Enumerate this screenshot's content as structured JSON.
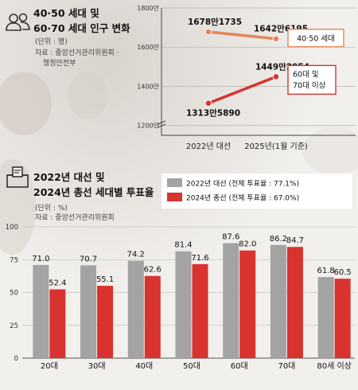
{
  "top": {
    "icon": "people-icon",
    "title_line1": "40·50 세대 및",
    "title_line2": "60·70 세대 인구 변화",
    "unit": "(단위 : 명)",
    "source_line1": "자료 : 중앙선거관리위원회 ·",
    "source_line2": "행정안전부"
  },
  "bottom": {
    "icon": "ballot-box-icon",
    "title_line1": "2022년 대선 및",
    "title_line2": "2024년 총선 세대별 투표율",
    "unit": "(단위 : %)",
    "source": "자료 : 중앙선거관리위원회"
  },
  "chart_data": [
    {
      "type": "line",
      "x": [
        "2022년 대선",
        "2025년(1월 기준)"
      ],
      "y_ticks": [
        "1200만",
        "1400만",
        "1600만",
        "1800만"
      ],
      "ylim": [
        11500000,
        18000000
      ],
      "series": [
        {
          "name": "40·50 세대",
          "values": [
            16781735,
            16426195
          ],
          "labels": [
            "1678만1735",
            "1642만6195"
          ],
          "color": "#e0875a"
        },
        {
          "name": "60대 및 70대 이상",
          "name_line1": "60대 및",
          "name_line2": "70대 이상",
          "values": [
            13135890,
            14492954
          ],
          "labels": [
            "1313만5890",
            "1449만2954"
          ],
          "color": "#d8332e"
        }
      ]
    },
    {
      "type": "bar",
      "categories": [
        "20대",
        "30대",
        "40대",
        "50대",
        "60대",
        "70대",
        "80세 이상"
      ],
      "ylim": [
        0,
        100
      ],
      "y_ticks": [
        "0",
        "25",
        "50",
        "75",
        "100"
      ],
      "legend_position": "top-right",
      "series": [
        {
          "name": "2022년 대선 (전체 투표율 : 77.1%)",
          "values": [
            71.0,
            70.7,
            74.2,
            81.4,
            87.6,
            86.2,
            61.8
          ],
          "labels": [
            "71.0",
            "70.7",
            "74.2",
            "81.4",
            "87.6",
            "86.2",
            "61.8"
          ],
          "color": "#a3a3a3"
        },
        {
          "name": "2024년 총선 (전체 투표율 : 67.0%)",
          "values": [
            52.4,
            55.1,
            62.6,
            71.6,
            82.0,
            84.7,
            60.5
          ],
          "labels": [
            "52.4",
            "55.1",
            "62.6",
            "71.6",
            "82.0",
            "84.7",
            "60.5"
          ],
          "color": "#d8332e"
        }
      ]
    }
  ]
}
